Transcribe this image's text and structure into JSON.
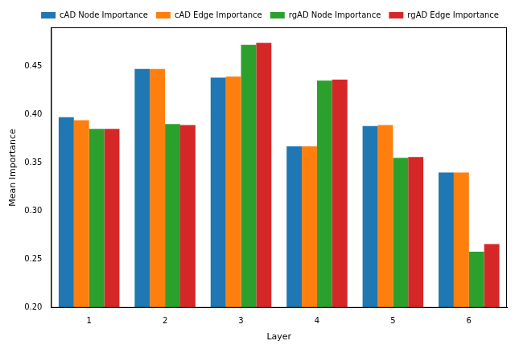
{
  "chart_data": {
    "type": "bar",
    "x_label": "Layer",
    "y_label": "Mean Importance",
    "categories": [
      "1",
      "2",
      "3",
      "4",
      "5",
      "6"
    ],
    "series": [
      {
        "name": "cAD Node Importance",
        "color": "#1f77b4",
        "values": [
          0.397,
          0.447,
          0.438,
          0.367,
          0.388,
          0.34
        ]
      },
      {
        "name": "cAD Edge Importance",
        "color": "#ff7f0e",
        "values": [
          0.394,
          0.447,
          0.439,
          0.367,
          0.389,
          0.34
        ]
      },
      {
        "name": "rgAD Node Importance",
        "color": "#2ca02c",
        "values": [
          0.385,
          0.39,
          0.472,
          0.435,
          0.355,
          0.258
        ]
      },
      {
        "name": "rgAD Edge Importance",
        "color": "#d62728",
        "values": [
          0.385,
          0.389,
          0.474,
          0.436,
          0.356,
          0.266
        ]
      }
    ],
    "ylim": [
      0.2,
      0.49
    ],
    "yticks": [
      {
        "value": 0.2,
        "label": "0.20"
      },
      0.25,
      {
        "value": 0.3,
        "label": "0.30"
      },
      0.35,
      {
        "value": 0.4,
        "label": "0.40"
      },
      0.45
    ],
    "grid": false,
    "legend": "upper right"
  }
}
